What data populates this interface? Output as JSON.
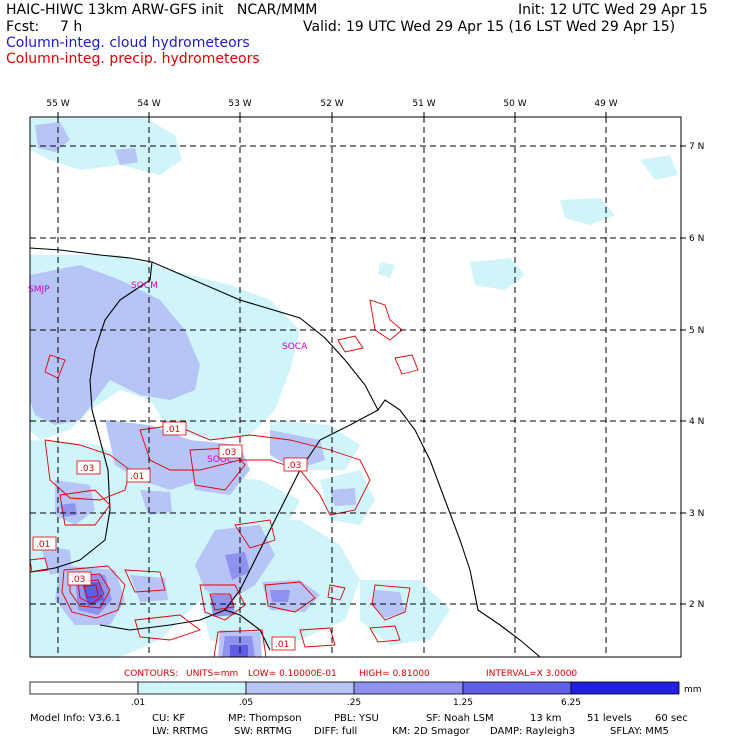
{
  "header": {
    "title": "HAIC-HIWC 13km ARW-GFS init   NCAR/MMM",
    "init": "Init: 12 UTC Wed 29 Apr 15",
    "fcst_label": "Fcst:",
    "fcst_value": "7 h",
    "valid": "Valid: 19 UTC Wed 29 Apr 15 (16 LST Wed 29 Apr 15)",
    "field1": "Column-integ. cloud hydrometeors",
    "field2": "Column-integ. precip. hydrometeors",
    "field1_color": "#1a1acc",
    "field2_color": "#e00000"
  },
  "map": {
    "lon_labels": [
      "55 W",
      "54 W",
      "53 W",
      "52 W",
      "51 W",
      "50 W",
      "49 W"
    ],
    "lat_labels": [
      "7 N",
      "6 N",
      "5 N",
      "4 N",
      "3 N",
      "2 N"
    ],
    "stations": [
      "SMJP",
      "SOCM",
      "SOCA",
      "SOOC"
    ],
    "contour_labels": [
      ".01",
      ".03",
      ".01",
      ".03",
      ".03",
      ".01",
      ".03",
      ".01"
    ],
    "station_color": "#cc00cc",
    "contour_color": "#e00000"
  },
  "contour_info": {
    "contours": "CONTOURS:",
    "units": "UNITS=mm",
    "low": "LOW= 0.10000E-01",
    "high": "HIGH= 0.81000",
    "interval": "INTERVAL=X  3.0000"
  },
  "colorbar": {
    "ticks": [
      ".01",
      ".05",
      ".25",
      "1.25",
      "6.25"
    ],
    "units": "mm",
    "colors": [
      "#ffffff",
      "#cff4f9",
      "#b7c4f6",
      "#8f92ee",
      "#5d5de6",
      "#2020e3"
    ]
  },
  "model_info": {
    "line1": [
      "Model Info: V3.6.1",
      "CU: KF",
      "MP: Thompson",
      "PBL: YSU",
      "SF: Noah LSM",
      "13 km",
      "51 levels",
      "60 sec"
    ],
    "line2": [
      "LW: RRTMG",
      "SW: RRTMG",
      "DIFF: full",
      "KM: 2D Smagor",
      "DAMP: Rayleigh3",
      "SFLAY: MM5"
    ]
  }
}
